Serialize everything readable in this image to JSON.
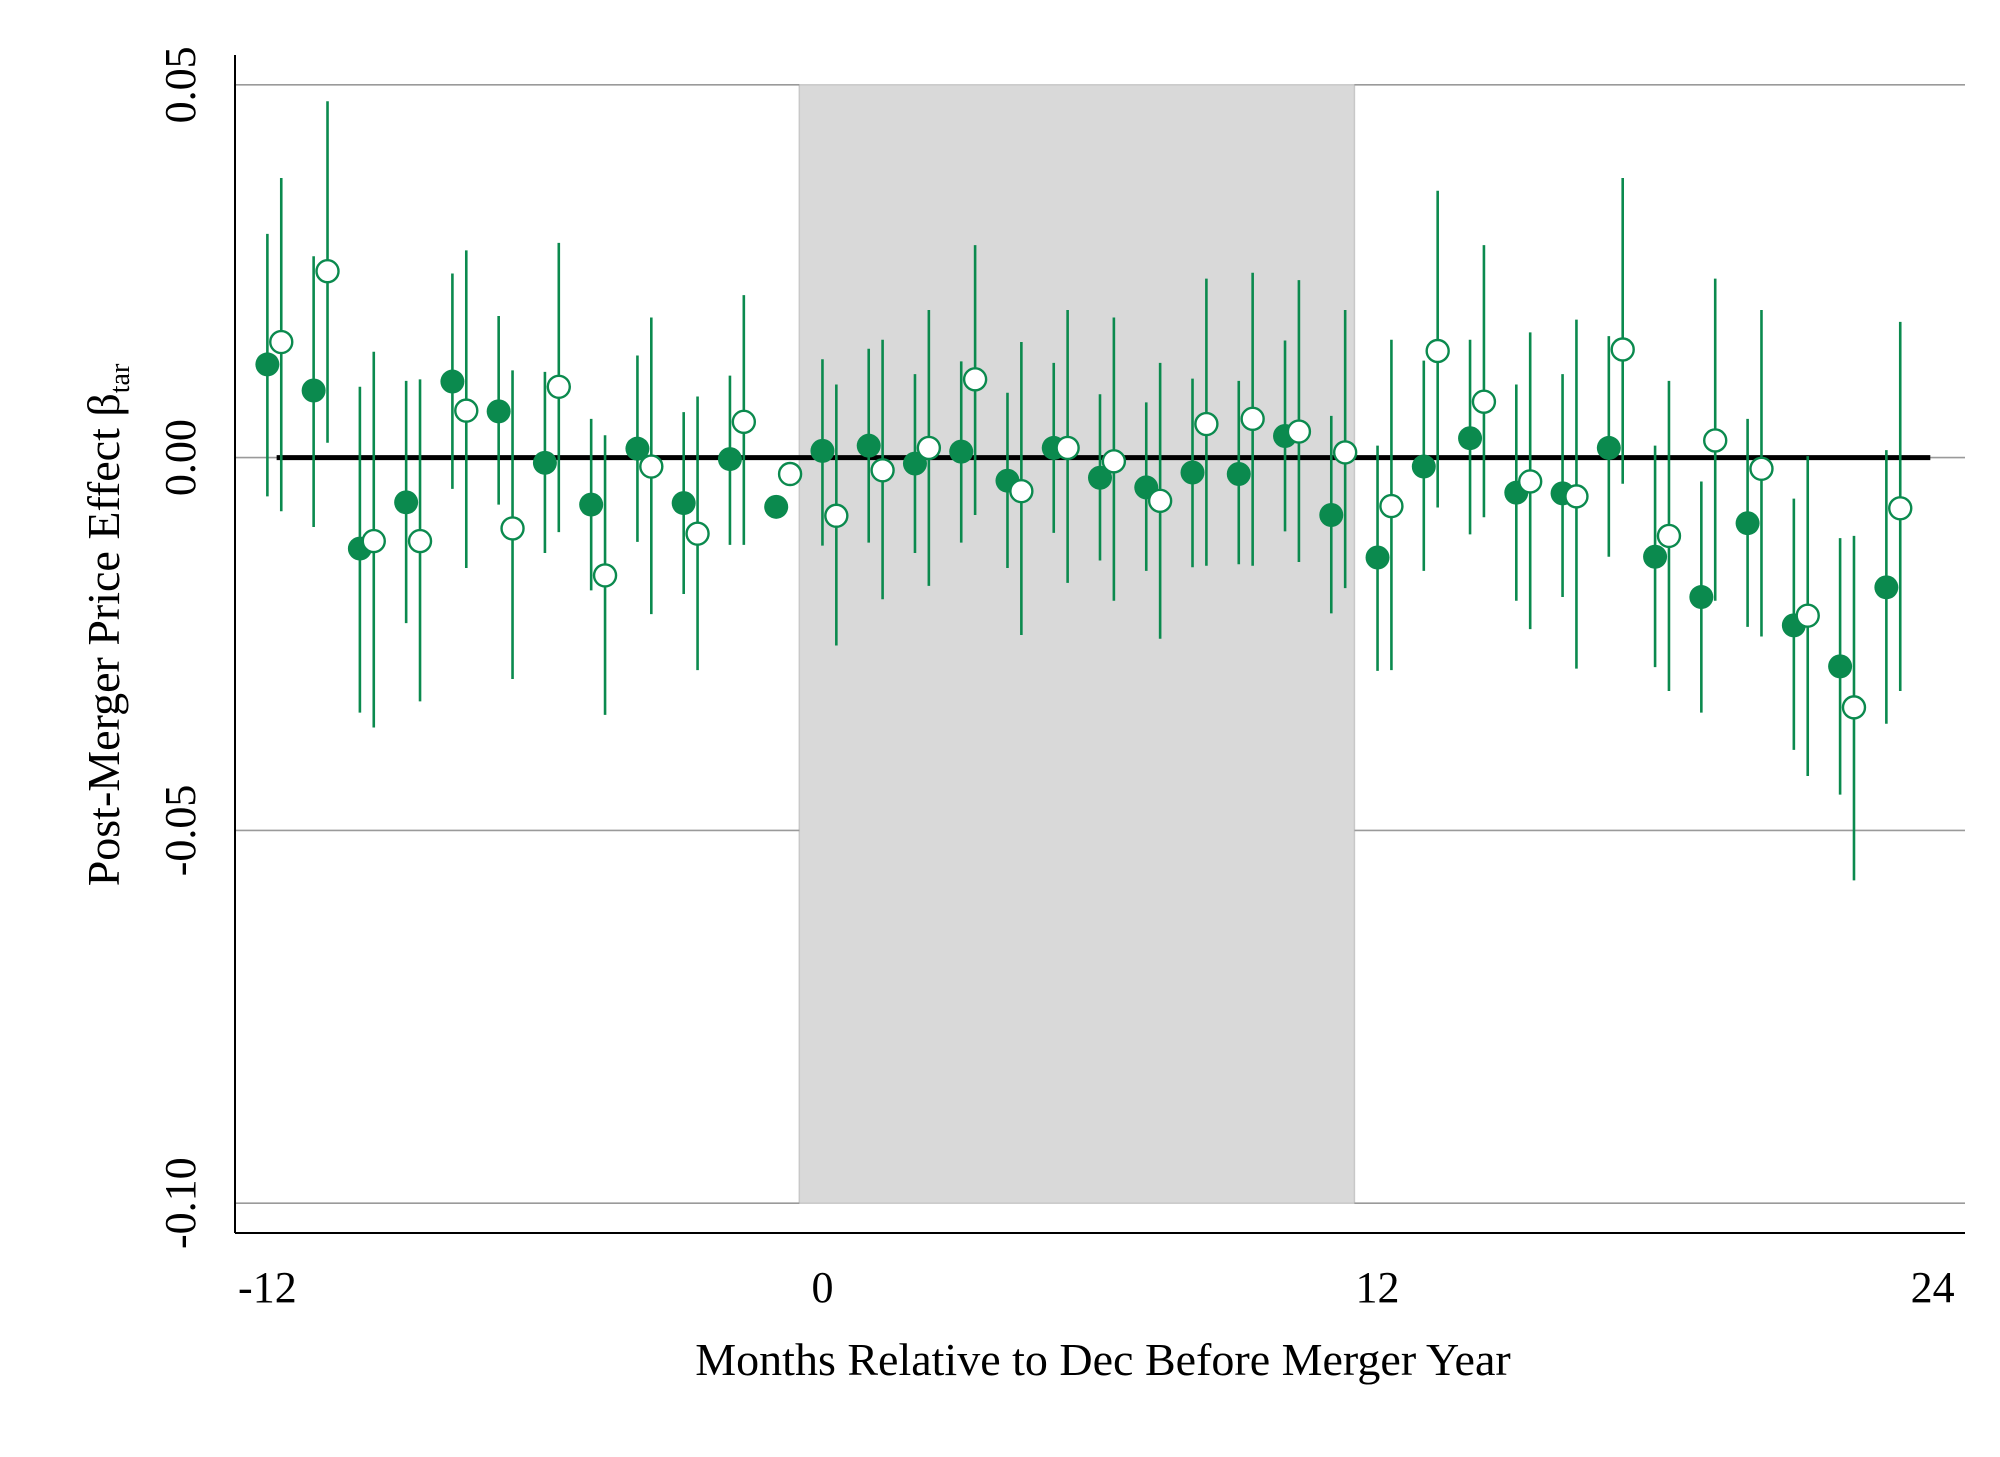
{
  "chart_data": {
    "type": "scatter",
    "xlabel": "Months Relative to Dec Before Merger Year",
    "ylabel_main": "Post-Merger Price Effect β",
    "ylabel_sub": "tar",
    "x_ticks": [
      "-12",
      "0",
      "12",
      "24"
    ],
    "x_tick_values": [
      -12,
      0,
      12,
      24
    ],
    "y_ticks": [
      "0.05",
      "0.00",
      "-0.05",
      "-0.10"
    ],
    "y_tick_values": [
      0.05,
      0.0,
      -0.05,
      -0.1
    ],
    "xlim": [
      -12.7,
      24.7
    ],
    "ylim": [
      -0.104,
      0.054
    ],
    "grid": "horizontal",
    "shaded_region": [
      -0.5,
      11.5
    ],
    "reference_line": 0,
    "colors": {
      "marker": "#0b8a4e",
      "ci": "#0b8a4e",
      "shade": "#d9d9d9",
      "zero_line": "#000000",
      "grid": "#9a9a9a"
    },
    "series": [
      {
        "marker": "filled",
        "x": [
          -12,
          -11,
          -10,
          -9,
          -8,
          -7,
          -6,
          -5,
          -4,
          -3,
          -2,
          -1,
          0,
          1,
          2,
          3,
          4,
          5,
          6,
          7,
          8,
          9,
          10,
          11,
          12,
          13,
          14,
          15,
          16,
          17,
          18,
          19,
          20,
          21,
          22,
          23
        ],
        "y": [
          0.0125,
          0.009,
          -0.0122,
          -0.006,
          0.0102,
          0.0062,
          -0.0007,
          -0.0063,
          0.0012,
          -0.0061,
          -0.0002,
          -0.0066,
          0.0009,
          0.0016,
          -0.0008,
          0.0008,
          -0.0031,
          0.0013,
          -0.0027,
          -0.004,
          -0.002,
          -0.0022,
          0.0029,
          -0.0077,
          -0.0134,
          -0.0012,
          0.0026,
          -0.0047,
          -0.0048,
          0.0013,
          -0.0133,
          -0.0187,
          -0.0088,
          -0.0225,
          -0.028,
          -0.0174
        ],
        "lo": [
          -0.0052,
          -0.0093,
          -0.0342,
          -0.0222,
          -0.0042,
          -0.0063,
          -0.0128,
          -0.0178,
          -0.0113,
          -0.0183,
          -0.0117,
          null,
          -0.0118,
          -0.0114,
          -0.0128,
          -0.0114,
          -0.0148,
          -0.0101,
          -0.0138,
          -0.0152,
          -0.0147,
          -0.0143,
          -0.0099,
          -0.0209,
          -0.0286,
          -0.0152,
          -0.0103,
          -0.0192,
          -0.0187,
          -0.0133,
          -0.0281,
          -0.0342,
          -0.0227,
          -0.0392,
          -0.0452,
          -0.0357
        ],
        "hi": [
          0.03,
          0.027,
          0.0095,
          0.0103,
          0.0247,
          0.019,
          0.0115,
          0.0052,
          0.0137,
          0.0061,
          0.011,
          null,
          0.0132,
          0.0146,
          0.0112,
          0.0129,
          0.0087,
          0.0127,
          0.0085,
          0.0074,
          0.0106,
          0.0103,
          0.0157,
          0.0056,
          0.0016,
          0.013,
          0.0158,
          0.0098,
          0.0112,
          0.0163,
          0.0016,
          -0.0032,
          0.0052,
          -0.0055,
          -0.0108,
          0.001
        ]
      },
      {
        "marker": "hollow",
        "x": [
          -11.7,
          -10.7,
          -9.7,
          -8.7,
          -7.7,
          -6.7,
          -5.7,
          -4.7,
          -3.7,
          -2.7,
          -1.7,
          -0.7,
          0.3,
          1.3,
          2.3,
          3.3,
          4.3,
          5.3,
          6.3,
          7.3,
          8.3,
          9.3,
          10.3,
          11.3,
          12.3,
          13.3,
          14.3,
          15.3,
          16.3,
          17.3,
          18.3,
          19.3,
          20.3,
          21.3,
          22.3,
          23.3
        ],
        "y": [
          0.0155,
          0.025,
          -0.0112,
          -0.0112,
          0.0063,
          -0.0095,
          0.0095,
          -0.0158,
          -0.0012,
          -0.0102,
          0.0048,
          -0.0022,
          -0.0078,
          -0.0017,
          0.0013,
          0.0105,
          -0.0045,
          0.0013,
          -0.0005,
          -0.0058,
          0.0045,
          0.0052,
          0.0035,
          0.0007,
          -0.0065,
          0.0143,
          0.0075,
          -0.0032,
          -0.0052,
          0.0145,
          -0.0105,
          0.0023,
          -0.0015,
          -0.0212,
          -0.0335,
          -0.0068
        ],
        "lo": [
          -0.0072,
          0.002,
          -0.0362,
          -0.0327,
          -0.0148,
          -0.0297,
          -0.01,
          -0.0345,
          -0.021,
          -0.0285,
          -0.0117,
          null,
          -0.0252,
          -0.019,
          -0.0172,
          -0.0077,
          -0.0238,
          -0.0168,
          -0.0192,
          -0.0243,
          -0.0145,
          -0.0145,
          -0.014,
          -0.0175,
          -0.0285,
          -0.0067,
          -0.008,
          -0.023,
          -0.0283,
          -0.0035,
          -0.0313,
          -0.0192,
          -0.024,
          -0.0427,
          -0.0567,
          -0.0313
        ],
        "hi": [
          0.0375,
          0.0478,
          0.0142,
          0.0105,
          0.0278,
          0.0117,
          0.0288,
          0.003,
          0.0188,
          0.0082,
          0.0218,
          null,
          0.0098,
          0.0158,
          0.0198,
          0.0285,
          0.0155,
          0.0198,
          0.0188,
          0.0127,
          0.024,
          0.0248,
          0.0238,
          0.0198,
          0.0158,
          0.0358,
          0.0285,
          0.0168,
          0.0185,
          0.0375,
          0.0103,
          0.024,
          0.0198,
          0.0002,
          -0.0105,
          0.0182
        ]
      }
    ]
  }
}
